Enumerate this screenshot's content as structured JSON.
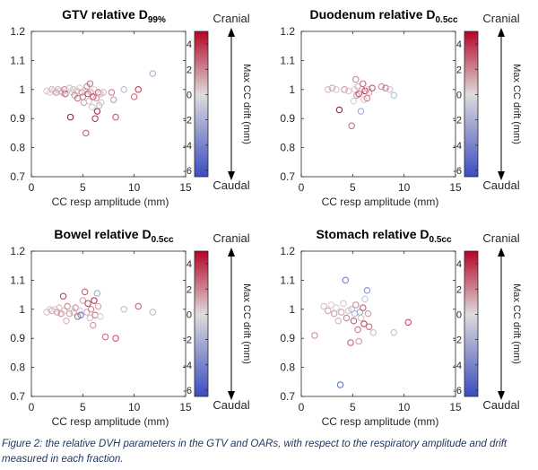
{
  "caption": "Figure 2: the relative DVH parameters in the GTV and OARs, with respect to the respiratory amplitude and drift measured in each fraction.",
  "chart_data": [
    {
      "type": "scatter",
      "title_main": "GTV relative D",
      "title_sub": "99%",
      "xlabel": "CC resp amplitude (mm)",
      "ylabel": "",
      "xlim": [
        0,
        15
      ],
      "ylim": [
        0.7,
        1.2
      ],
      "xticks": [
        "0",
        "5",
        "10",
        "15"
      ],
      "yticks": [
        "0.7",
        "0.8",
        "0.9",
        "1",
        "1.1",
        "1.2"
      ],
      "colorbar": {
        "label": "Max CC drift (mm)",
        "top_label": "Cranial",
        "bottom_label": "Caudal",
        "ticks": [
          "4",
          "2",
          "0",
          "-2",
          "-4",
          "-6"
        ],
        "min": -6.5,
        "max": 5
      },
      "points": [
        {
          "x": 1.5,
          "y": 0.995,
          "c": 0.5
        },
        {
          "x": 1.8,
          "y": 0.99,
          "c": 0.3
        },
        {
          "x": 2.0,
          "y": 1.0,
          "c": 1.0
        },
        {
          "x": 2.2,
          "y": 0.995,
          "c": 0.2
        },
        {
          "x": 2.4,
          "y": 0.99,
          "c": 1.5
        },
        {
          "x": 2.6,
          "y": 1.0,
          "c": 0.8
        },
        {
          "x": 2.8,
          "y": 0.995,
          "c": 0.4
        },
        {
          "x": 3.0,
          "y": 0.99,
          "c": 1.2
        },
        {
          "x": 3.2,
          "y": 1.0,
          "c": 2.0
        },
        {
          "x": 3.3,
          "y": 0.985,
          "c": 3.0
        },
        {
          "x": 3.5,
          "y": 0.995,
          "c": -0.3
        },
        {
          "x": 3.7,
          "y": 1.005,
          "c": 0.7
        },
        {
          "x": 3.8,
          "y": 0.905,
          "c": 4.5
        },
        {
          "x": 4.0,
          "y": 0.99,
          "c": -0.5
        },
        {
          "x": 4.1,
          "y": 1.0,
          "c": -1.0
        },
        {
          "x": 4.2,
          "y": 0.98,
          "c": 1.8
        },
        {
          "x": 4.4,
          "y": 0.995,
          "c": 0.9
        },
        {
          "x": 4.5,
          "y": 0.97,
          "c": 2.5
        },
        {
          "x": 4.7,
          "y": 1.005,
          "c": 0.3
        },
        {
          "x": 4.9,
          "y": 0.99,
          "c": 1.6
        },
        {
          "x": 5.0,
          "y": 0.975,
          "c": 2.2
        },
        {
          "x": 5.1,
          "y": 0.955,
          "c": 1.3
        },
        {
          "x": 5.2,
          "y": 0.995,
          "c": 0.4
        },
        {
          "x": 5.3,
          "y": 0.85,
          "c": 2.8
        },
        {
          "x": 5.4,
          "y": 1.01,
          "c": 1.9
        },
        {
          "x": 5.5,
          "y": 0.985,
          "c": 3.2
        },
        {
          "x": 5.6,
          "y": 0.96,
          "c": 0.6
        },
        {
          "x": 5.7,
          "y": 1.02,
          "c": 2.4
        },
        {
          "x": 5.8,
          "y": 0.99,
          "c": 1.1
        },
        {
          "x": 5.9,
          "y": 0.94,
          "c": -0.8
        },
        {
          "x": 6.0,
          "y": 0.975,
          "c": 3.5
        },
        {
          "x": 6.1,
          "y": 1.0,
          "c": 0.2
        },
        {
          "x": 6.2,
          "y": 0.9,
          "c": 3.8
        },
        {
          "x": 6.3,
          "y": 0.97,
          "c": 1.4
        },
        {
          "x": 6.4,
          "y": 0.925,
          "c": 4.2
        },
        {
          "x": 6.5,
          "y": 0.99,
          "c": 2.6
        },
        {
          "x": 6.6,
          "y": 0.945,
          "c": -1.6
        },
        {
          "x": 6.7,
          "y": 0.985,
          "c": 1.0
        },
        {
          "x": 6.8,
          "y": 0.955,
          "c": 0.5
        },
        {
          "x": 7.0,
          "y": 0.99,
          "c": 0.8
        },
        {
          "x": 7.8,
          "y": 0.99,
          "c": 2.1
        },
        {
          "x": 8.0,
          "y": 0.965,
          "c": 1.7
        },
        {
          "x": 8.2,
          "y": 0.905,
          "c": 3.0
        },
        {
          "x": 9.0,
          "y": 1.0,
          "c": -1.5
        },
        {
          "x": 10.0,
          "y": 0.975,
          "c": 2.5
        },
        {
          "x": 10.4,
          "y": 1.0,
          "c": 3.6
        },
        {
          "x": 11.8,
          "y": 1.055,
          "c": -2.0
        }
      ]
    },
    {
      "type": "scatter",
      "title_main": "Duodenum relative D",
      "title_sub": "0.5cc",
      "xlabel": "CC resp amplitude (mm)",
      "ylabel": "",
      "xlim": [
        0,
        15
      ],
      "ylim": [
        0.7,
        1.2
      ],
      "xticks": [
        "0",
        "5",
        "10",
        "15"
      ],
      "yticks": [
        "0.7",
        "0.8",
        "0.9",
        "1",
        "1.1",
        "1.2"
      ],
      "colorbar": {
        "label": "Max CC drift (mm)",
        "top_label": "Cranial",
        "bottom_label": "Caudal",
        "ticks": [
          "4",
          "2",
          "0",
          "-2",
          "-4",
          "-6"
        ],
        "min": -6.5,
        "max": 5
      },
      "points": [
        {
          "x": 2.6,
          "y": 1.0,
          "c": 0.8
        },
        {
          "x": 3.0,
          "y": 1.005,
          "c": 1.2
        },
        {
          "x": 3.4,
          "y": 1.0,
          "c": 0.4
        },
        {
          "x": 3.7,
          "y": 0.93,
          "c": 4.5
        },
        {
          "x": 4.2,
          "y": 1.0,
          "c": 1.5
        },
        {
          "x": 4.6,
          "y": 0.995,
          "c": 0.6
        },
        {
          "x": 4.9,
          "y": 0.875,
          "c": 2.5
        },
        {
          "x": 5.1,
          "y": 0.96,
          "c": -0.4
        },
        {
          "x": 5.2,
          "y": 1.0,
          "c": 0.3
        },
        {
          "x": 5.3,
          "y": 1.035,
          "c": 2.0
        },
        {
          "x": 5.4,
          "y": 0.98,
          "c": 1.7
        },
        {
          "x": 5.5,
          "y": 1.01,
          "c": 0.9
        },
        {
          "x": 5.6,
          "y": 0.985,
          "c": 3.4
        },
        {
          "x": 5.8,
          "y": 0.925,
          "c": -2.2
        },
        {
          "x": 5.9,
          "y": 1.0,
          "c": 1.1
        },
        {
          "x": 6.0,
          "y": 1.02,
          "c": 2.6
        },
        {
          "x": 6.1,
          "y": 0.965,
          "c": 0.5
        },
        {
          "x": 6.2,
          "y": 0.995,
          "c": 4.0
        },
        {
          "x": 6.4,
          "y": 0.97,
          "c": 2.2
        },
        {
          "x": 6.5,
          "y": 1.0,
          "c": -0.9
        },
        {
          "x": 6.6,
          "y": 0.99,
          "c": 1.4
        },
        {
          "x": 6.9,
          "y": 1.005,
          "c": 3.0
        },
        {
          "x": 7.8,
          "y": 1.01,
          "c": 1.8
        },
        {
          "x": 8.2,
          "y": 1.005,
          "c": 2.4
        },
        {
          "x": 8.6,
          "y": 1.0,
          "c": -1.2
        },
        {
          "x": 9.0,
          "y": 0.98,
          "c": -1.4
        }
      ]
    },
    {
      "type": "scatter",
      "title_main": "Bowel relative D",
      "title_sub": "0.5cc",
      "xlabel": "CC resp amplitude (mm)",
      "ylabel": "",
      "xlim": [
        0,
        15
      ],
      "ylim": [
        0.7,
        1.2
      ],
      "xticks": [
        "0",
        "5",
        "10",
        "15"
      ],
      "yticks": [
        "0.7",
        "0.8",
        "0.9",
        "1",
        "1.1",
        "1.2"
      ],
      "colorbar": {
        "label": "Max CC drift (mm)",
        "top_label": "Cranial",
        "bottom_label": "Caudal",
        "ticks": [
          "4",
          "2",
          "0",
          "-2",
          "-4",
          "-6"
        ],
        "min": -6.5,
        "max": 5
      },
      "points": [
        {
          "x": 1.5,
          "y": 0.99,
          "c": 0.6
        },
        {
          "x": 1.8,
          "y": 1.0,
          "c": 0.3
        },
        {
          "x": 2.0,
          "y": 0.995,
          "c": 1.1
        },
        {
          "x": 2.3,
          "y": 1.0,
          "c": 0.2
        },
        {
          "x": 2.5,
          "y": 0.99,
          "c": 1.4
        },
        {
          "x": 2.7,
          "y": 1.005,
          "c": 0.8
        },
        {
          "x": 2.9,
          "y": 0.985,
          "c": 1.9
        },
        {
          "x": 3.1,
          "y": 1.045,
          "c": 3.5
        },
        {
          "x": 3.2,
          "y": 0.995,
          "c": 0.4
        },
        {
          "x": 3.4,
          "y": 0.96,
          "c": 1.0
        },
        {
          "x": 3.5,
          "y": 1.01,
          "c": 2.2
        },
        {
          "x": 3.7,
          "y": 0.985,
          "c": 1.5
        },
        {
          "x": 3.9,
          "y": 1.0,
          "c": -0.3
        },
        {
          "x": 4.1,
          "y": 0.99,
          "c": 0.9
        },
        {
          "x": 4.3,
          "y": 1.005,
          "c": 1.7
        },
        {
          "x": 4.5,
          "y": 0.975,
          "c": 2.6
        },
        {
          "x": 4.7,
          "y": 0.995,
          "c": 0.5
        },
        {
          "x": 4.8,
          "y": 0.98,
          "c": -4.5
        },
        {
          "x": 5.0,
          "y": 1.03,
          "c": 1.3
        },
        {
          "x": 5.2,
          "y": 1.06,
          "c": 2.9
        },
        {
          "x": 5.4,
          "y": 0.99,
          "c": 1.0
        },
        {
          "x": 5.5,
          "y": 1.02,
          "c": 3.3
        },
        {
          "x": 5.7,
          "y": 0.97,
          "c": 0.7
        },
        {
          "x": 5.8,
          "y": 1.0,
          "c": 2.0
        },
        {
          "x": 6.0,
          "y": 0.945,
          "c": 1.6
        },
        {
          "x": 6.1,
          "y": 1.03,
          "c": 4.0
        },
        {
          "x": 6.2,
          "y": 0.98,
          "c": 2.4
        },
        {
          "x": 6.4,
          "y": 1.055,
          "c": -2.1
        },
        {
          "x": 6.5,
          "y": 1.01,
          "c": 1.2
        },
        {
          "x": 6.7,
          "y": 0.975,
          "c": 0.4
        },
        {
          "x": 7.2,
          "y": 0.905,
          "c": 2.5
        },
        {
          "x": 8.2,
          "y": 0.9,
          "c": 3.2
        },
        {
          "x": 9.0,
          "y": 1.0,
          "c": -1.2
        },
        {
          "x": 10.4,
          "y": 1.01,
          "c": 2.8
        },
        {
          "x": 11.8,
          "y": 0.99,
          "c": -1.5
        }
      ]
    },
    {
      "type": "scatter",
      "title_main": "Stomach relative D",
      "title_sub": "0.5cc",
      "xlabel": "CC resp amplitude (mm)",
      "ylabel": "",
      "xlim": [
        0,
        15
      ],
      "ylim": [
        0.7,
        1.2
      ],
      "xticks": [
        "0",
        "5",
        "10",
        "15"
      ],
      "yticks": [
        "0.7",
        "0.8",
        "0.9",
        "1",
        "1.1",
        "1.2"
      ],
      "colorbar": {
        "label": "Max CC drift (mm)",
        "top_label": "Cranial",
        "bottom_label": "Caudal",
        "ticks": [
          "4",
          "2",
          "0",
          "-2",
          "-4",
          "-6"
        ],
        "min": -6.5,
        "max": 5
      },
      "points": [
        {
          "x": 1.3,
          "y": 0.91,
          "c": 1.8
        },
        {
          "x": 2.2,
          "y": 1.01,
          "c": 0.7
        },
        {
          "x": 2.6,
          "y": 0.995,
          "c": 1.2
        },
        {
          "x": 2.9,
          "y": 1.015,
          "c": 0.3
        },
        {
          "x": 3.2,
          "y": 0.985,
          "c": 1.6
        },
        {
          "x": 3.4,
          "y": 1.005,
          "c": -0.4
        },
        {
          "x": 3.6,
          "y": 0.96,
          "c": 0.9
        },
        {
          "x": 3.8,
          "y": 0.74,
          "c": -4.8
        },
        {
          "x": 3.9,
          "y": 0.99,
          "c": 1.3
        },
        {
          "x": 4.1,
          "y": 1.02,
          "c": 0.5
        },
        {
          "x": 4.3,
          "y": 1.1,
          "c": -4.0
        },
        {
          "x": 4.4,
          "y": 0.97,
          "c": 2.1
        },
        {
          "x": 4.6,
          "y": 0.995,
          "c": -0.8
        },
        {
          "x": 4.8,
          "y": 0.885,
          "c": 2.7
        },
        {
          "x": 4.9,
          "y": 1.0,
          "c": 1.0
        },
        {
          "x": 5.1,
          "y": 0.96,
          "c": 3.0
        },
        {
          "x": 5.2,
          "y": 0.985,
          "c": -1.6
        },
        {
          "x": 5.3,
          "y": 1.015,
          "c": 1.8
        },
        {
          "x": 5.5,
          "y": 0.93,
          "c": 2.3
        },
        {
          "x": 5.6,
          "y": 0.89,
          "c": 1.5
        },
        {
          "x": 5.7,
          "y": 0.99,
          "c": -2.4
        },
        {
          "x": 5.8,
          "y": 0.97,
          "c": 0.6
        },
        {
          "x": 6.0,
          "y": 1.005,
          "c": 2.9
        },
        {
          "x": 6.1,
          "y": 0.95,
          "c": 3.5
        },
        {
          "x": 6.2,
          "y": 1.035,
          "c": -1.0
        },
        {
          "x": 6.4,
          "y": 1.065,
          "c": -3.2
        },
        {
          "x": 6.5,
          "y": 0.985,
          "c": 1.4
        },
        {
          "x": 6.6,
          "y": 0.94,
          "c": 2.5
        },
        {
          "x": 7.0,
          "y": 0.92,
          "c": 0.8
        },
        {
          "x": 9.0,
          "y": 0.92,
          "c": -1.3
        },
        {
          "x": 10.4,
          "y": 0.955,
          "c": 3.3
        }
      ]
    }
  ]
}
